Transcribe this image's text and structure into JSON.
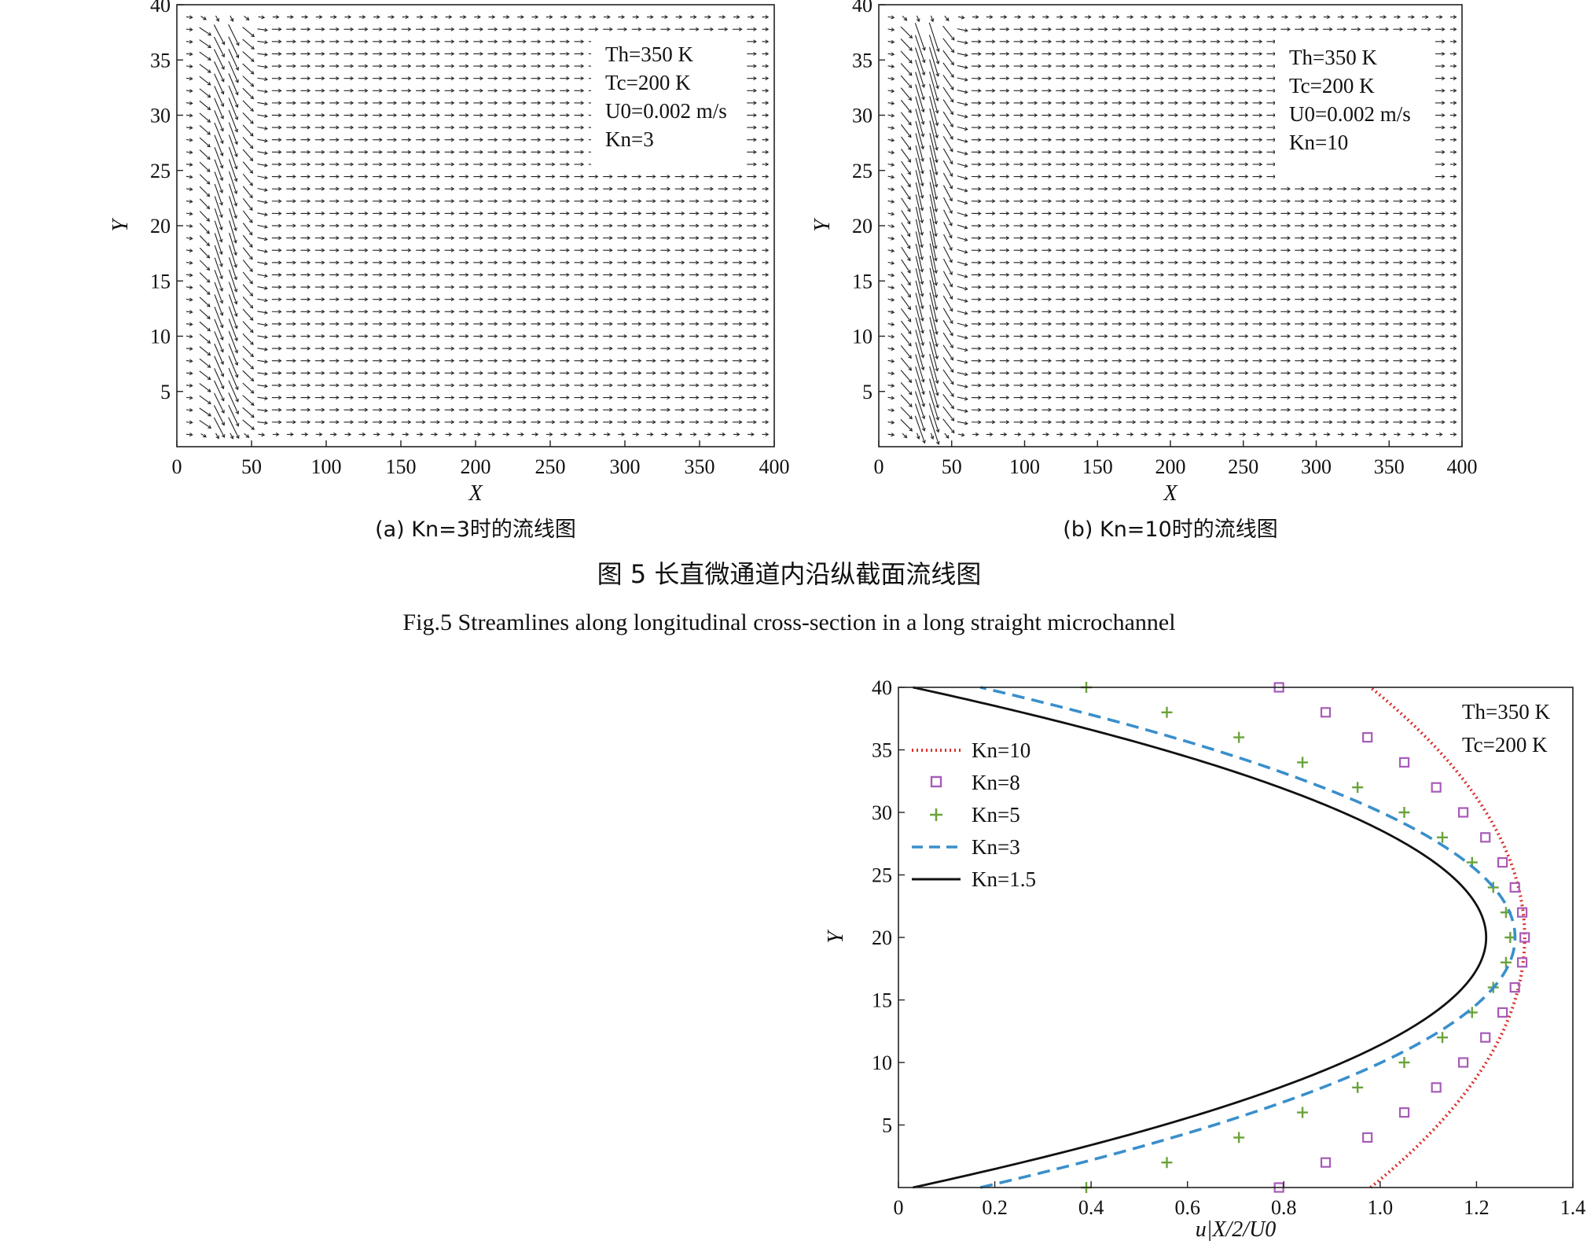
{
  "figure5": {
    "caption_cn": "图 5   长直微通道内沿纵截面流线图",
    "caption_en": "Fig.5    Streamlines along longitudinal cross-section in a long straight microchannel",
    "panel_a": {
      "subcaption": "(a) Kn=3时的流线图",
      "annotation": [
        "Th=350 K",
        "Tc=200 K",
        "U0=0.002 m/s",
        "Kn=3"
      ]
    },
    "panel_b": {
      "subcaption": "(b) Kn=10时的流线图",
      "annotation": [
        "Th=350 K",
        "Tc=200 K",
        "U0=0.002 m/s",
        "Kn=10"
      ]
    }
  },
  "colors": {
    "kn10": "#d9302b",
    "kn8": "#a85bb8",
    "kn5": "#6aa33a",
    "kn3": "#3a8fcb",
    "kn15": "#111111"
  },
  "chart_data": [
    {
      "type": "quiver",
      "panel": "a",
      "xlabel": "X",
      "ylabel": "Y",
      "xlim": [
        0,
        400
      ],
      "ylim": [
        0,
        40
      ],
      "xticks": [
        "0",
        "50",
        "100",
        "150",
        "200",
        "250",
        "300",
        "350",
        "400"
      ],
      "yticks": [
        "5",
        "10",
        "15",
        "20",
        "25",
        "30",
        "35",
        "40"
      ]
    },
    {
      "type": "quiver",
      "panel": "b",
      "xlabel": "X",
      "ylabel": "Y",
      "xlim": [
        0,
        400
      ],
      "ylim": [
        0,
        40
      ],
      "xticks": [
        "0",
        "50",
        "100",
        "150",
        "200",
        "250",
        "300",
        "350",
        "400"
      ],
      "yticks": [
        "5",
        "10",
        "15",
        "20",
        "25",
        "30",
        "35",
        "40"
      ]
    },
    {
      "type": "line",
      "xlabel": "u|X/2/U0",
      "ylabel": "Y",
      "xlim": [
        0,
        1.4
      ],
      "ylim": [
        0,
        40
      ],
      "xticks": [
        "0",
        "0.2",
        "0.4",
        "0.6",
        "0.8",
        "1.0",
        "1.2",
        "1.4"
      ],
      "yticks": [
        "5",
        "10",
        "15",
        "20",
        "25",
        "30",
        "35",
        "40"
      ],
      "annotation": [
        "Th=350 K",
        "Tc=200 K"
      ],
      "legend_position": "left",
      "series": [
        {
          "name": "Kn=10",
          "style": "dotted",
          "color": "#d9302b",
          "wall_value": 0.98,
          "center_value": 1.3
        },
        {
          "name": "Kn=8",
          "style": "square",
          "color": "#a85bb8",
          "wall_value": 0.79,
          "center_value": 1.3
        },
        {
          "name": "Kn=5",
          "style": "plus",
          "color": "#6aa33a",
          "wall_value": 0.39,
          "center_value": 1.27
        },
        {
          "name": "Kn=3",
          "style": "dashed",
          "color": "#3a8fcb",
          "wall_value": 0.17,
          "center_value": 1.28
        },
        {
          "name": "Kn=1.5",
          "style": "solid",
          "color": "#111111",
          "wall_value": 0.03,
          "center_value": 1.22
        }
      ]
    }
  ]
}
